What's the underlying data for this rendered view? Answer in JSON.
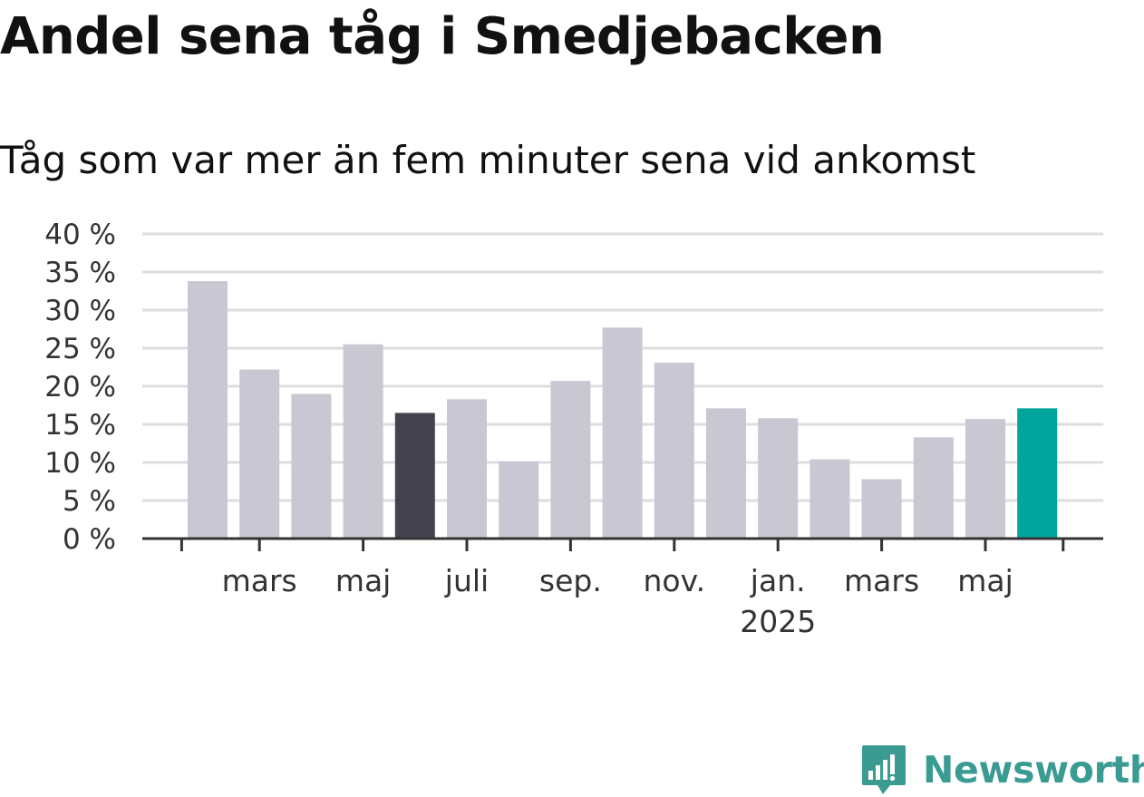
{
  "title": "Andel sena tåg i Smedjebacken",
  "subtitle": "Tåg som var mer än fem minuter sena vid ankomst",
  "brand": {
    "name": "Newsworthy",
    "color": "#3a9b93",
    "icon": "newsworthy-logo-icon"
  },
  "colors": {
    "bar": "#c8c7d2",
    "highlight_dark": "#44424d",
    "highlight_latest": "#00a69b",
    "grid": "#dddddd",
    "axis": "#333333"
  },
  "chart_data": {
    "type": "bar",
    "title": "Andel sena tåg i Smedjebacken",
    "subtitle": "Tåg som var mer än fem minuter sena vid ankomst",
    "x": [
      "2024-02",
      "2024-03",
      "2024-04",
      "2024-05",
      "2024-06",
      "2024-07",
      "2024-08",
      "2024-09",
      "2024-10",
      "2024-11",
      "2024-12",
      "2025-01",
      "2025-02",
      "2025-03",
      "2025-04",
      "2025-05",
      "2025-06"
    ],
    "values": [
      33.8,
      22.2,
      19.0,
      25.5,
      16.5,
      18.3,
      10.1,
      20.7,
      27.7,
      23.1,
      17.1,
      15.8,
      10.4,
      7.8,
      13.3,
      15.7,
      17.1
    ],
    "highlight": {
      "2024-06": "dark",
      "2025-06": "latest"
    },
    "ylim": [
      0,
      40
    ],
    "yticks": [
      0,
      5,
      10,
      15,
      20,
      25,
      30,
      35,
      40
    ],
    "ytick_labels": [
      "0 %",
      "5 %",
      "10 %",
      "15 %",
      "20 %",
      "25 %",
      "30 %",
      "35 %",
      "40 %"
    ],
    "xtick_labels": [
      {
        "x": "2024-03",
        "label": "mars"
      },
      {
        "x": "2024-05",
        "label": "maj"
      },
      {
        "x": "2024-07",
        "label": "juli"
      },
      {
        "x": "2024-09",
        "label": "sep."
      },
      {
        "x": "2024-11",
        "label": "nov."
      },
      {
        "x": "2025-01",
        "label": "jan.",
        "sublabel": "2025"
      },
      {
        "x": "2025-03",
        "label": "mars"
      },
      {
        "x": "2025-05",
        "label": "maj"
      }
    ],
    "xlabel": "",
    "ylabel": "",
    "grid": true,
    "legend": "none"
  }
}
